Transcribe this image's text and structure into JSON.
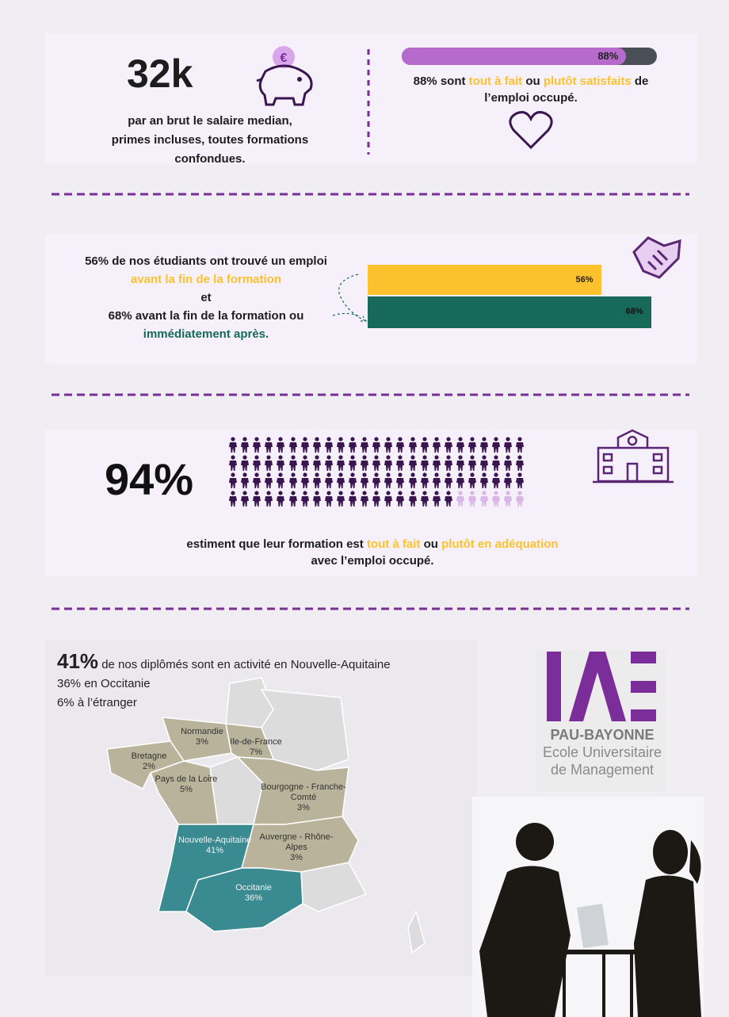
{
  "salary": {
    "value": "32k",
    "text": "par an brut le salaire median, primes incluses, toutes formations confondues."
  },
  "satisfaction": {
    "value": 88,
    "value_label": "88%",
    "xlim": [
      0,
      100
    ],
    "color": "#b66bcc",
    "text": [
      "88% sont ",
      "tout à fait",
      " ou ",
      "plutôt satisfaits",
      " de l’emploi occupé."
    ]
  },
  "employment": {
    "xlim": [
      0,
      100
    ],
    "bars": [
      {
        "value": 56,
        "value_label": "56%",
        "color": "#fcc22d"
      },
      {
        "value": 68,
        "value_label": "68%",
        "color": "#17695a"
      }
    ],
    "text": [
      "56% de nos étudiants ont trouvé un emploi",
      "avant la fin de la formation",
      "et",
      "68% avant la fin de la formation ou",
      "immédiatement après."
    ]
  },
  "adequation": {
    "value_label": "94%",
    "filled": 94,
    "total": 100,
    "text": [
      "estiment que leur formation est ",
      "tout à fait",
      " ou ",
      "plutôt en adéquation",
      "avec l’emploi occupé."
    ]
  },
  "location": {
    "headline": "41%",
    "headline_text": "de nos diplômés sont en activité en Nouvelle-Aquitaine",
    "lines": [
      "36% en Occitanie",
      "6% à l’étranger"
    ],
    "regions": [
      {
        "name": "Normandie",
        "share": "3%"
      },
      {
        "name": "Ile-de-France",
        "share": "7%"
      },
      {
        "name": "Bretagne",
        "share": "2%"
      },
      {
        "name": "Pays de la Loire",
        "share": "5%"
      },
      {
        "name": "Bourgogne - Franche-Comté",
        "share": "3%"
      },
      {
        "name": "Nouvelle-Aquitaine",
        "share": "41%"
      },
      {
        "name": "Auvergne - Rhône-Alpes",
        "share": "3%"
      },
      {
        "name": "Occitanie",
        "share": "36%"
      }
    ]
  },
  "logo": {
    "line1": "PAU-BAYONNE",
    "line2": "Ecole Universitaire",
    "line3": "de Management"
  }
}
